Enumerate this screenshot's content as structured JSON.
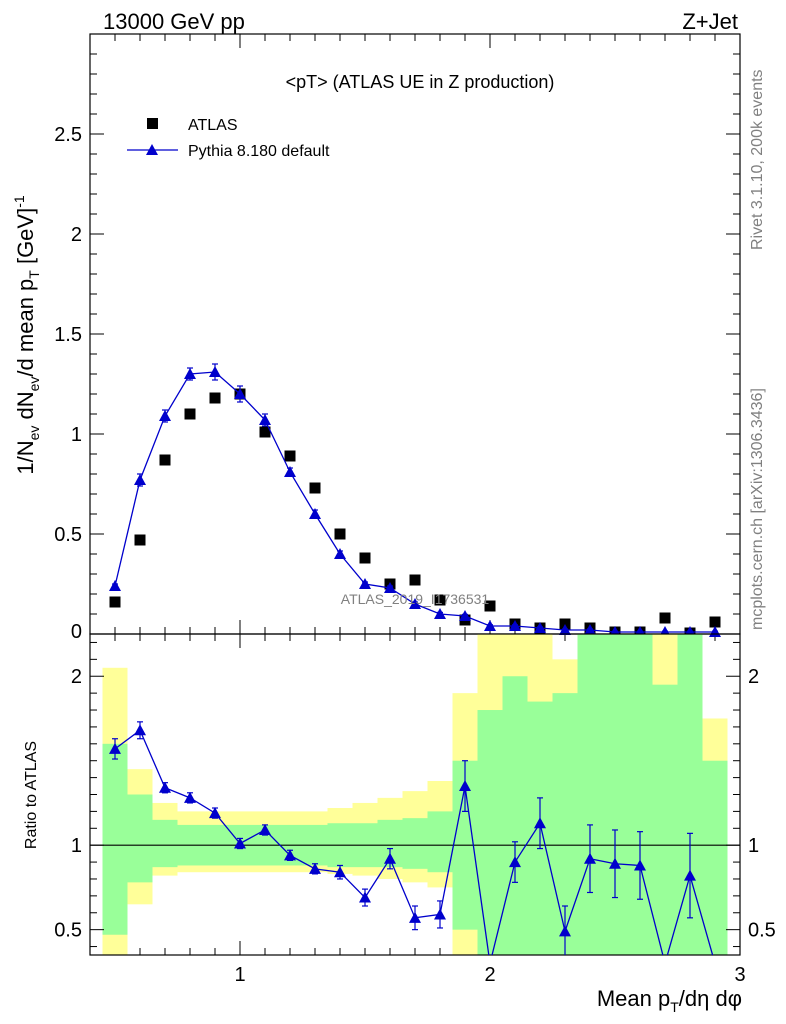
{
  "header": {
    "left": "13000 GeV pp",
    "right": "Z+Jet"
  },
  "side_labels": {
    "rivet": "Rivet 3.1.10,  200k events",
    "mcplots": "mcplots.cern.ch [arXiv:1306.3436]"
  },
  "watermark": "ATLAS_2019_I1736531",
  "colors": {
    "mc": "#0000cc",
    "data": "#000000",
    "band_inner": "#99ff99",
    "band_outer": "#ffff99"
  },
  "chart_data": [
    {
      "type": "scatter",
      "title": "<pT> (ATLAS UE in Z production)",
      "ylabel": "1/N_ev dN_ev/d mean p_T [GeV]^-1",
      "xlim": [
        0.4,
        3.0
      ],
      "ylim": [
        0,
        3.0
      ],
      "yticks": [
        0.5,
        1,
        1.5,
        2,
        2.5
      ],
      "ytick_labels": [
        "0.5",
        "1",
        "1.5",
        "2",
        "2.5"
      ],
      "legend": {
        "placement": "top-left",
        "entries": [
          "ATLAS",
          "Pythia 8.180 default"
        ]
      },
      "series": [
        {
          "name": "ATLAS",
          "x": [
            0.5,
            0.6,
            0.7,
            0.8,
            0.9,
            1.0,
            1.1,
            1.2,
            1.3,
            1.4,
            1.5,
            1.6,
            1.7,
            1.8,
            1.9,
            2.0,
            2.1,
            2.2,
            2.3,
            2.4,
            2.5,
            2.6,
            2.7,
            2.8,
            2.9
          ],
          "y": [
            0.16,
            0.47,
            0.87,
            1.1,
            1.18,
            1.2,
            1.01,
            0.89,
            0.73,
            0.5,
            0.38,
            0.25,
            0.27,
            0.17,
            0.07,
            0.14,
            0.05,
            0.03,
            0.05,
            0.03,
            0.01,
            0.01,
            0.08,
            0.005,
            0.06
          ]
        },
        {
          "name": "Pythia 8.180 default",
          "x": [
            0.5,
            0.6,
            0.7,
            0.8,
            0.9,
            1.0,
            1.1,
            1.2,
            1.3,
            1.4,
            1.5,
            1.6,
            1.7,
            1.8,
            1.9,
            2.0,
            2.1,
            2.2,
            2.3,
            2.4,
            2.5,
            2.6,
            2.7,
            2.8,
            2.9
          ],
          "y": [
            0.24,
            0.77,
            1.09,
            1.3,
            1.31,
            1.2,
            1.07,
            0.81,
            0.6,
            0.4,
            0.25,
            0.23,
            0.15,
            0.1,
            0.09,
            0.04,
            0.04,
            0.03,
            0.02,
            0.02,
            0.01,
            0.01,
            0.01,
            0.01,
            0.01
          ],
          "err": [
            0.01,
            0.03,
            0.03,
            0.03,
            0.04,
            0.04,
            0.03,
            0.02,
            0.02,
            0.015,
            0.01,
            0.01,
            0.01,
            0.008,
            0.008,
            0.006,
            0.006,
            0.005,
            0.005,
            0.005,
            0.004,
            0.004,
            0.004,
            0.004,
            0.004
          ]
        }
      ]
    },
    {
      "type": "scatter",
      "ylabel": "Ratio to ATLAS",
      "xlabel": "Mean p_T/dη dφ",
      "xlim": [
        0.4,
        3.0
      ],
      "ylim": [
        0.35,
        2.25
      ],
      "xticks": [
        1,
        2,
        3
      ],
      "xtick_labels": [
        "1",
        "2",
        "3"
      ],
      "yticks": [
        0.5,
        1,
        2
      ],
      "ytick_labels": [
        "0.5",
        "1",
        "2"
      ],
      "reference_line": 1.0,
      "bands": {
        "x_edges": [
          0.45,
          0.55,
          0.65,
          0.75,
          0.85,
          0.95,
          1.05,
          1.15,
          1.25,
          1.35,
          1.45,
          1.55,
          1.65,
          1.75,
          1.85,
          1.95,
          2.05,
          2.15,
          2.25,
          2.35,
          2.45,
          2.55,
          2.65,
          2.75,
          2.85,
          2.95
        ],
        "inner_lo": [
          0.47,
          0.78,
          0.87,
          0.88,
          0.88,
          0.88,
          0.88,
          0.88,
          0.88,
          0.87,
          0.87,
          0.87,
          0.86,
          0.84,
          0.5,
          0.35,
          0.35,
          0.35,
          0.35,
          0.35,
          0.35,
          0.35,
          0.35,
          0.35,
          0.35
        ],
        "inner_hi": [
          1.6,
          1.3,
          1.15,
          1.12,
          1.12,
          1.12,
          1.12,
          1.12,
          1.12,
          1.13,
          1.13,
          1.15,
          1.16,
          1.2,
          1.5,
          1.8,
          2.0,
          1.85,
          1.9,
          2.25,
          2.25,
          2.25,
          1.95,
          2.25,
          1.5
        ],
        "outer_lo": [
          0.35,
          0.65,
          0.82,
          0.84,
          0.84,
          0.84,
          0.84,
          0.84,
          0.84,
          0.83,
          0.82,
          0.8,
          0.78,
          0.75,
          0.35,
          0.35,
          0.35,
          0.35,
          0.35,
          0.35,
          0.35,
          0.35,
          0.35,
          0.35,
          0.35
        ],
        "outer_hi": [
          2.05,
          1.45,
          1.25,
          1.2,
          1.2,
          1.2,
          1.2,
          1.2,
          1.2,
          1.22,
          1.25,
          1.28,
          1.32,
          1.38,
          1.9,
          2.25,
          2.25,
          2.25,
          2.1,
          2.25,
          2.25,
          2.25,
          2.25,
          2.25,
          1.75
        ]
      },
      "series": [
        {
          "name": "Pythia 8.180 default",
          "x": [
            0.5,
            0.6,
            0.7,
            0.8,
            0.9,
            1.0,
            1.1,
            1.2,
            1.3,
            1.4,
            1.5,
            1.6,
            1.7,
            1.8,
            1.9,
            2.0,
            2.1,
            2.2,
            2.3,
            2.4,
            2.5,
            2.6,
            2.7,
            2.8,
            2.9
          ],
          "y": [
            1.57,
            1.68,
            1.34,
            1.28,
            1.19,
            1.01,
            1.09,
            0.94,
            0.86,
            0.84,
            0.69,
            0.92,
            0.57,
            0.59,
            1.35,
            0.3,
            0.9,
            1.13,
            0.49,
            0.92,
            0.89,
            0.88,
            0.3,
            0.82,
            0.3
          ],
          "err": [
            0.06,
            0.05,
            0.03,
            0.03,
            0.03,
            0.03,
            0.03,
            0.03,
            0.03,
            0.04,
            0.05,
            0.06,
            0.07,
            0.08,
            0.15,
            0.1,
            0.12,
            0.15,
            0.15,
            0.2,
            0.2,
            0.2,
            0.2,
            0.25,
            0.2
          ]
        }
      ]
    }
  ]
}
